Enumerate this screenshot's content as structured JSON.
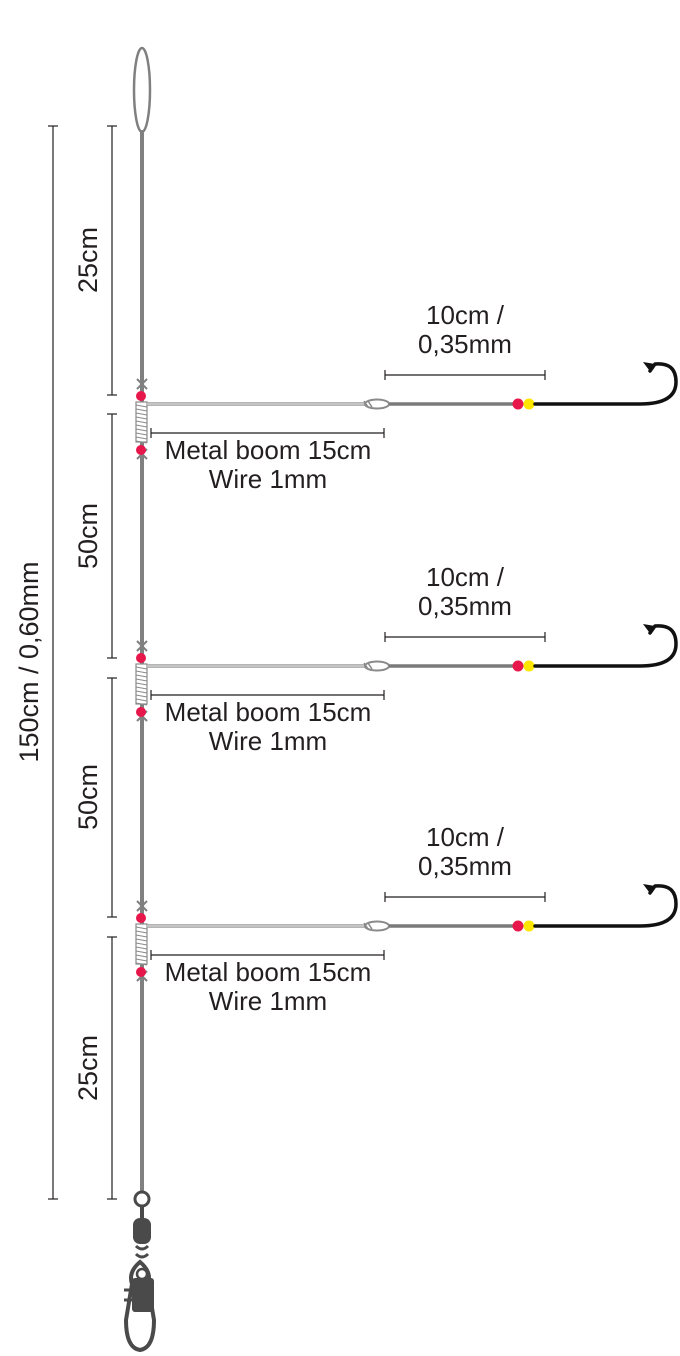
{
  "colors": {
    "main_line": "#808080",
    "boom": "#9b9b9b",
    "red_bead": "#e8174b",
    "yellow_bead": "#ffe600",
    "hook": "#111111",
    "swivel": "#4a4a4a",
    "dimension_lines": "#231f20"
  },
  "total_length_label": "150cm / 0,60mm",
  "segments": [
    {
      "label": "25cm"
    },
    {
      "label": "50cm"
    },
    {
      "label": "50cm"
    },
    {
      "label": "25cm"
    }
  ],
  "branches": [
    {
      "snood_line1": "10cm /",
      "snood_line2": "0,35mm",
      "boom_line1": "Metal boom 15cm",
      "boom_line2": "Wire 1mm"
    },
    {
      "snood_line1": "10cm /",
      "snood_line2": "0,35mm",
      "boom_line1": "Metal boom 15cm",
      "boom_line2": "Wire 1mm"
    },
    {
      "snood_line1": "10cm /",
      "snood_line2": "0,35mm",
      "boom_line1": "Metal boom 15cm",
      "boom_line2": "Wire 1mm"
    }
  ],
  "icons": [
    "loop-icon",
    "swivel-icon",
    "snap-icon",
    "hook-icon",
    "bead-icon",
    "crimp-icon"
  ]
}
